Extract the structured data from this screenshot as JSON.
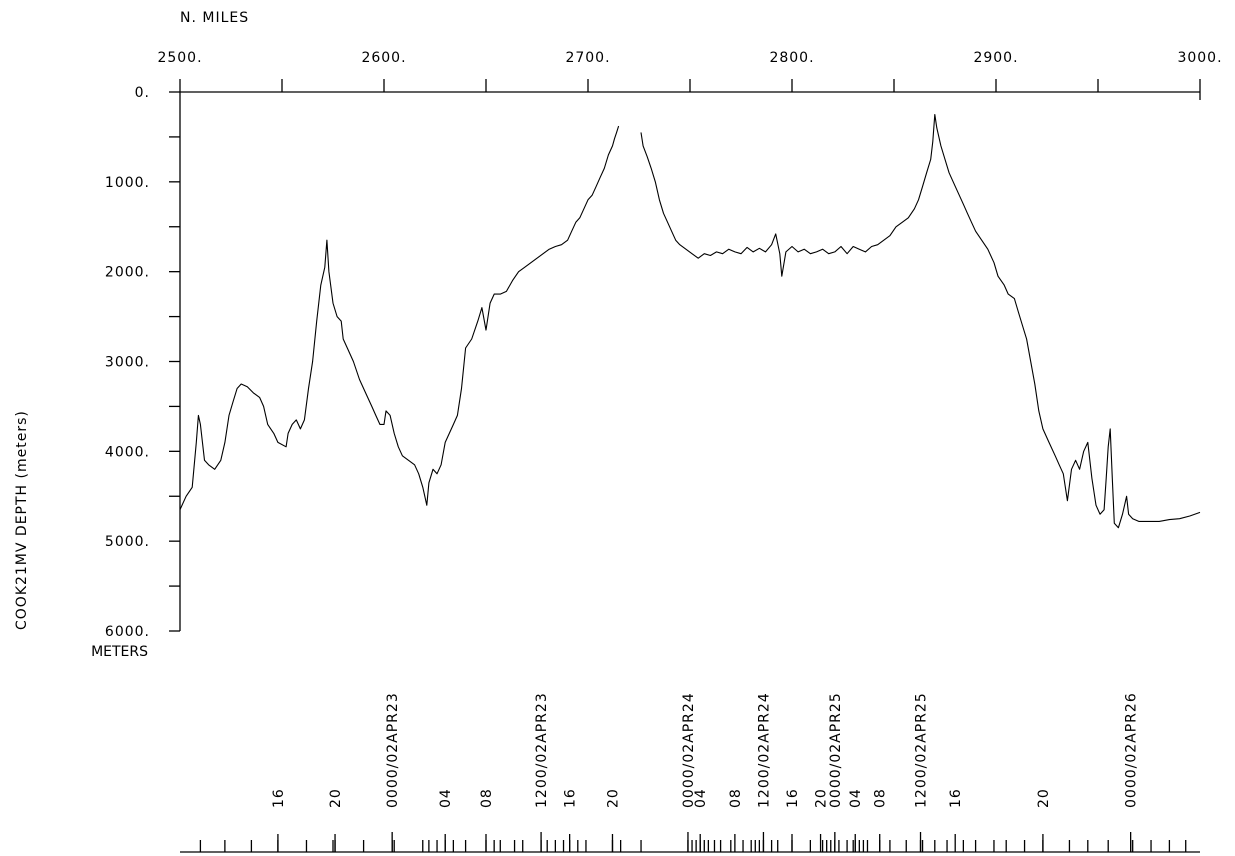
{
  "chart_data": {
    "type": "line",
    "x_axis_label": "N. MILES",
    "y_axis_label": "COOK21MV   DEPTH  (meters)",
    "y_unit_label": "METERS",
    "xlim": [
      2500,
      3000
    ],
    "ylim": [
      0,
      6000
    ],
    "y_inverted": true,
    "x_tick_labels": [
      "2500.",
      "2600.",
      "2700.",
      "2800.",
      "2900.",
      "3000."
    ],
    "x_tick_values": [
      2500,
      2600,
      2700,
      2800,
      2900,
      3000
    ],
    "x_minor_tick_values": [
      2550,
      2650,
      2750,
      2850,
      2950
    ],
    "y_tick_labels": [
      "0.",
      "1000.",
      "2000.",
      "3000.",
      "4000.",
      "5000.",
      "6000."
    ],
    "y_tick_values": [
      0,
      1000,
      2000,
      3000,
      4000,
      5000,
      6000
    ],
    "y_minor_tick_values": [
      500,
      1500,
      2500,
      3500,
      4500,
      5500
    ],
    "series": [
      {
        "segments": [
          [
            [
              2500,
              4650
            ],
            [
              2503,
              4500
            ],
            [
              2506,
              4400
            ],
            [
              2508,
              3900
            ],
            [
              2509,
              3600
            ],
            [
              2510,
              3700
            ],
            [
              2512,
              4100
            ],
            [
              2514,
              4150
            ],
            [
              2517,
              4200
            ],
            [
              2520,
              4100
            ],
            [
              2522,
              3900
            ],
            [
              2524,
              3600
            ],
            [
              2526,
              3450
            ],
            [
              2528,
              3300
            ],
            [
              2530,
              3250
            ],
            [
              2533,
              3280
            ],
            [
              2536,
              3350
            ],
            [
              2539,
              3400
            ],
            [
              2541,
              3500
            ],
            [
              2543,
              3700
            ],
            [
              2546,
              3800
            ],
            [
              2548,
              3900
            ],
            [
              2552,
              3950
            ],
            [
              2553,
              3800
            ],
            [
              2555,
              3700
            ],
            [
              2557,
              3650
            ],
            [
              2559,
              3750
            ],
            [
              2561,
              3650
            ],
            [
              2563,
              3300
            ],
            [
              2565,
              3000
            ],
            [
              2567,
              2550
            ],
            [
              2569,
              2150
            ],
            [
              2571,
              1950
            ],
            [
              2572,
              1650
            ],
            [
              2573,
              2000
            ],
            [
              2575,
              2350
            ],
            [
              2577,
              2500
            ],
            [
              2579,
              2550
            ],
            [
              2580,
              2750
            ],
            [
              2582,
              2850
            ],
            [
              2585,
              3000
            ],
            [
              2588,
              3200
            ],
            [
              2591,
              3350
            ],
            [
              2594,
              3500
            ],
            [
              2596,
              3600
            ],
            [
              2598,
              3700
            ],
            [
              2600,
              3700
            ],
            [
              2601,
              3550
            ],
            [
              2603,
              3600
            ],
            [
              2605,
              3800
            ],
            [
              2607,
              3950
            ],
            [
              2609,
              4050
            ],
            [
              2612,
              4100
            ],
            [
              2615,
              4150
            ],
            [
              2617,
              4250
            ],
            [
              2619,
              4400
            ],
            [
              2621,
              4600
            ],
            [
              2622,
              4350
            ],
            [
              2624,
              4200
            ],
            [
              2626,
              4250
            ],
            [
              2628,
              4150
            ],
            [
              2630,
              3900
            ],
            [
              2632,
              3800
            ],
            [
              2634,
              3700
            ],
            [
              2636,
              3600
            ],
            [
              2638,
              3300
            ],
            [
              2640,
              2850
            ],
            [
              2643,
              2750
            ],
            [
              2646,
              2550
            ],
            [
              2648,
              2400
            ],
            [
              2650,
              2650
            ],
            [
              2652,
              2350
            ],
            [
              2654,
              2250
            ],
            [
              2657,
              2250
            ],
            [
              2660,
              2220
            ],
            [
              2663,
              2100
            ],
            [
              2666,
              2000
            ],
            [
              2669,
              1950
            ],
            [
              2672,
              1900
            ],
            [
              2675,
              1850
            ],
            [
              2678,
              1800
            ],
            [
              2681,
              1750
            ],
            [
              2684,
              1720
            ],
            [
              2687,
              1700
            ],
            [
              2690,
              1650
            ],
            [
              2692,
              1550
            ],
            [
              2694,
              1450
            ],
            [
              2696,
              1400
            ],
            [
              2698,
              1300
            ],
            [
              2700,
              1200
            ],
            [
              2702,
              1150
            ],
            [
              2704,
              1050
            ],
            [
              2706,
              950
            ],
            [
              2708,
              850
            ],
            [
              2710,
              700
            ],
            [
              2712,
              600
            ],
            [
              2713,
              520
            ],
            [
              2714,
              450
            ],
            [
              2715,
              380
            ]
          ],
          [
            [
              2726,
              450
            ],
            [
              2727,
              600
            ],
            [
              2729,
              720
            ],
            [
              2731,
              850
            ],
            [
              2733,
              1000
            ],
            [
              2735,
              1200
            ],
            [
              2737,
              1350
            ],
            [
              2739,
              1450
            ],
            [
              2741,
              1550
            ],
            [
              2743,
              1650
            ],
            [
              2745,
              1700
            ],
            [
              2748,
              1750
            ],
            [
              2751,
              1800
            ],
            [
              2754,
              1850
            ],
            [
              2757,
              1800
            ],
            [
              2760,
              1820
            ],
            [
              2763,
              1780
            ],
            [
              2766,
              1800
            ],
            [
              2769,
              1750
            ],
            [
              2772,
              1780
            ],
            [
              2775,
              1800
            ],
            [
              2778,
              1730
            ],
            [
              2781,
              1780
            ],
            [
              2784,
              1740
            ],
            [
              2787,
              1780
            ],
            [
              2790,
              1700
            ],
            [
              2792,
              1580
            ],
            [
              2794,
              1800
            ],
            [
              2795,
              2050
            ],
            [
              2797,
              1780
            ],
            [
              2800,
              1720
            ],
            [
              2803,
              1780
            ],
            [
              2806,
              1750
            ],
            [
              2809,
              1800
            ],
            [
              2812,
              1780
            ],
            [
              2815,
              1750
            ],
            [
              2818,
              1800
            ],
            [
              2821,
              1780
            ],
            [
              2824,
              1720
            ],
            [
              2827,
              1800
            ],
            [
              2830,
              1720
            ],
            [
              2833,
              1750
            ],
            [
              2836,
              1780
            ],
            [
              2839,
              1720
            ],
            [
              2842,
              1700
            ],
            [
              2845,
              1650
            ],
            [
              2848,
              1600
            ],
            [
              2851,
              1500
            ],
            [
              2854,
              1450
            ],
            [
              2857,
              1400
            ],
            [
              2860,
              1300
            ],
            [
              2862,
              1200
            ],
            [
              2864,
              1050
            ],
            [
              2866,
              900
            ],
            [
              2868,
              750
            ],
            [
              2869,
              550
            ],
            [
              2870,
              250
            ],
            [
              2871,
              400
            ],
            [
              2873,
              600
            ],
            [
              2875,
              750
            ],
            [
              2877,
              900
            ],
            [
              2880,
              1050
            ],
            [
              2882,
              1150
            ],
            [
              2884,
              1250
            ],
            [
              2886,
              1350
            ],
            [
              2888,
              1450
            ],
            [
              2890,
              1550
            ],
            [
              2893,
              1650
            ],
            [
              2896,
              1750
            ],
            [
              2899,
              1900
            ],
            [
              2901,
              2050
            ],
            [
              2904,
              2150
            ],
            [
              2906,
              2250
            ],
            [
              2909,
              2300
            ],
            [
              2911,
              2450
            ],
            [
              2913,
              2600
            ],
            [
              2915,
              2750
            ],
            [
              2917,
              3000
            ],
            [
              2919,
              3250
            ],
            [
              2921,
              3550
            ],
            [
              2923,
              3750
            ],
            [
              2926,
              3900
            ],
            [
              2929,
              4050
            ],
            [
              2931,
              4150
            ],
            [
              2933,
              4250
            ],
            [
              2935,
              4550
            ],
            [
              2937,
              4200
            ],
            [
              2939,
              4100
            ],
            [
              2941,
              4200
            ],
            [
              2943,
              4000
            ],
            [
              2945,
              3900
            ],
            [
              2947,
              4300
            ],
            [
              2949,
              4600
            ],
            [
              2951,
              4700
            ],
            [
              2953,
              4650
            ],
            [
              2954,
              4300
            ],
            [
              2955,
              3950
            ],
            [
              2956,
              3750
            ],
            [
              2957,
              4300
            ],
            [
              2958,
              4800
            ],
            [
              2960,
              4850
            ],
            [
              2962,
              4700
            ],
            [
              2964,
              4500
            ],
            [
              2965,
              4700
            ],
            [
              2967,
              4750
            ],
            [
              2970,
              4780
            ],
            [
              2975,
              4780
            ],
            [
              2980,
              4780
            ],
            [
              2985,
              4760
            ],
            [
              2990,
              4750
            ],
            [
              2995,
              4720
            ],
            [
              3000,
              4680
            ]
          ]
        ]
      }
    ],
    "time_labels_major": [
      {
        "label": "0000/02APR23",
        "x": 2604
      },
      {
        "label": "1200/02APR23",
        "x": 2677
      },
      {
        "label": "0000/02APR24",
        "x": 2749
      },
      {
        "label": "1200/02APR24",
        "x": 2786
      },
      {
        "label": "0000/02APR25",
        "x": 2821
      },
      {
        "label": "1200/02APR25",
        "x": 2863
      },
      {
        "label": "0000/02APR26",
        "x": 2966
      }
    ],
    "time_labels_minor": [
      {
        "label": "16",
        "x": 2548
      },
      {
        "label": "20",
        "x": 2576
      },
      {
        "label": "04",
        "x": 2630
      },
      {
        "label": "08",
        "x": 2650
      },
      {
        "label": "16",
        "x": 2691
      },
      {
        "label": "20",
        "x": 2712
      },
      {
        "label": "04",
        "x": 2755
      },
      {
        "label": "08",
        "x": 2772
      },
      {
        "label": "16",
        "x": 2800
      },
      {
        "label": "20",
        "x": 2814
      },
      {
        "label": "04",
        "x": 2831
      },
      {
        "label": "08",
        "x": 2843
      },
      {
        "label": "16",
        "x": 2880
      },
      {
        "label": "20",
        "x": 2923
      }
    ],
    "time_ticks": [
      2510,
      2522,
      2535,
      2548,
      2562,
      2575,
      2576,
      2590,
      2604,
      2605,
      2619,
      2622,
      2626,
      2630,
      2634,
      2640,
      2650,
      2654,
      2657,
      2664,
      2668,
      2677,
      2680,
      2684,
      2688,
      2691,
      2695,
      2699,
      2712,
      2716,
      2726,
      2749,
      2751,
      2753,
      2755,
      2757,
      2759,
      2762,
      2765,
      2770,
      2776,
      2780,
      2782,
      2784,
      2786,
      2790,
      2793,
      2800,
      2809,
      2815,
      2817,
      2819,
      2821,
      2823,
      2827,
      2830,
      2831,
      2833,
      2835,
      2837,
      2843,
      2848,
      2856,
      2863,
      2864,
      2870,
      2876,
      2884,
      2890,
      2899,
      2905,
      2914,
      2923,
      2936,
      2945,
      2955,
      2966,
      2967,
      2976,
      2985,
      2993
    ]
  }
}
